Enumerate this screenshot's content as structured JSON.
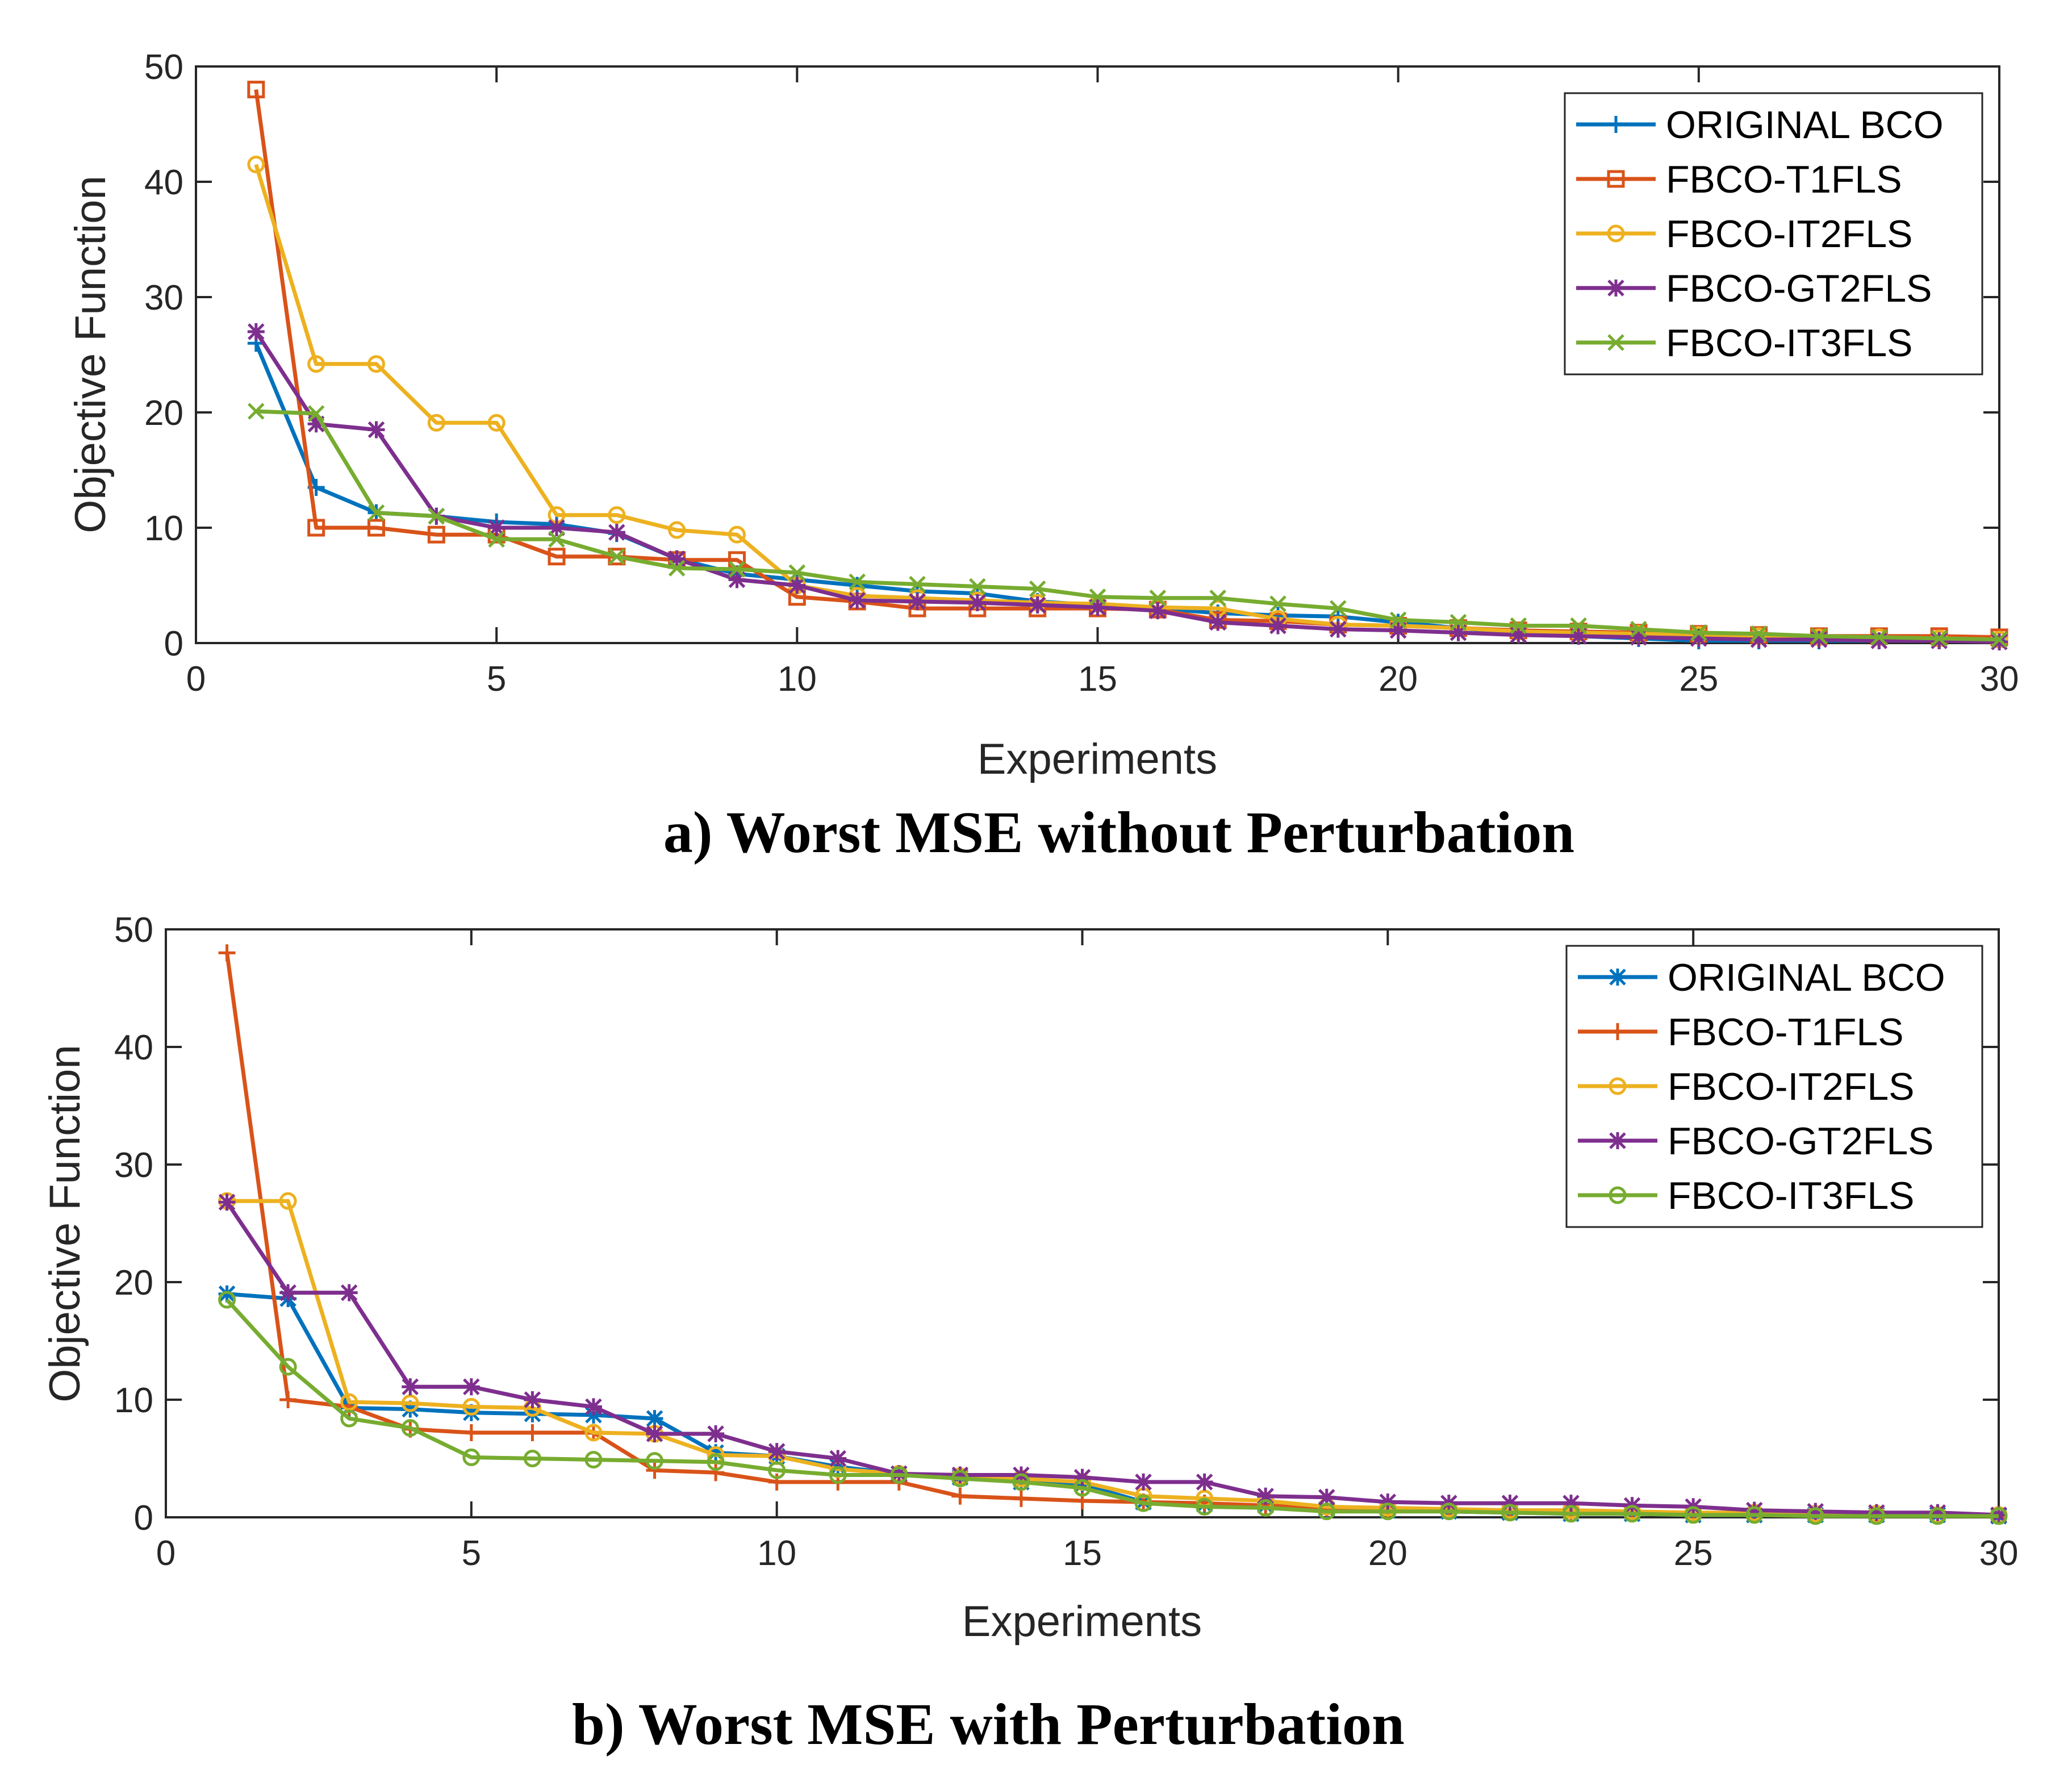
{
  "chart_data": [
    {
      "type": "line",
      "caption": "a) Worst MSE without Perturbation",
      "xlabel": "Experiments",
      "ylabel": "Objective Function",
      "xlim": [
        0,
        30
      ],
      "ylim": [
        0,
        50
      ],
      "xticks": [
        "0",
        "5",
        "10",
        "15",
        "20",
        "25",
        "30"
      ],
      "yticks": [
        "0",
        "10",
        "20",
        "30",
        "40",
        "50"
      ],
      "legend_position": "top-right",
      "x": [
        1,
        2,
        3,
        4,
        5,
        6,
        7,
        8,
        9,
        10,
        11,
        12,
        13,
        14,
        15,
        16,
        17,
        18,
        19,
        20,
        21,
        22,
        23,
        24,
        25,
        26,
        27,
        28,
        29,
        30
      ],
      "series": [
        {
          "name": "ORIGINAL BCO",
          "color": "#0072BD",
          "marker": "plus",
          "values": [
            26,
            13.5,
            11.3,
            11,
            10.5,
            10.3,
            9.5,
            7.3,
            6,
            5.5,
            5,
            4.5,
            4.3,
            3.6,
            3.3,
            3,
            2.6,
            2.4,
            2.3,
            1.8,
            1.3,
            0.9,
            0.6,
            0.4,
            0.2,
            0.2,
            0.2,
            0.2,
            0.2,
            0.2
          ]
        },
        {
          "name": "FBCO-T1FLS",
          "color": "#D95319",
          "marker": "square",
          "values": [
            48,
            10,
            10,
            9.4,
            9.4,
            7.5,
            7.5,
            7.2,
            7.2,
            4,
            3.6,
            3,
            3,
            3,
            3,
            2.9,
            2,
            1.9,
            1.6,
            1.5,
            1.3,
            1.1,
            1,
            0.9,
            0.8,
            0.7,
            0.6,
            0.6,
            0.6,
            0.5
          ]
        },
        {
          "name": "FBCO-IT2FLS",
          "color": "#EDB120",
          "marker": "circle",
          "values": [
            41.5,
            24.2,
            24.2,
            19.1,
            19.1,
            11.1,
            11.1,
            9.8,
            9.4,
            5,
            4.1,
            3.9,
            3.7,
            3.5,
            3.4,
            3.1,
            3,
            2.1,
            1.6,
            1.5,
            1.3,
            1,
            0.9,
            0.8,
            0.7,
            0.6,
            0.5,
            0.5,
            0.4,
            0.3
          ]
        },
        {
          "name": "FBCO-GT2FLS",
          "color": "#7E2F8E",
          "marker": "asterisk",
          "values": [
            27,
            19,
            18.5,
            11,
            10,
            10,
            9.6,
            7.3,
            5.5,
            5,
            3.7,
            3.6,
            3.5,
            3.3,
            3.1,
            2.8,
            1.8,
            1.5,
            1.2,
            1.1,
            0.9,
            0.7,
            0.6,
            0.5,
            0.4,
            0.3,
            0.3,
            0.2,
            0.2,
            0.1
          ]
        },
        {
          "name": "FBCO-IT3FLS",
          "color": "#77AC30",
          "marker": "x",
          "values": [
            20.1,
            19.9,
            11.3,
            11,
            9,
            9,
            7.5,
            6.5,
            6.4,
            6.1,
            5.3,
            5.1,
            4.9,
            4.7,
            4,
            3.9,
            3.9,
            3.4,
            3,
            2,
            1.8,
            1.5,
            1.5,
            1.2,
            0.9,
            0.8,
            0.6,
            0.5,
            0.4,
            0.3
          ]
        }
      ]
    },
    {
      "type": "line",
      "caption": "b) Worst MSE with Perturbation",
      "xlabel": "Experiments",
      "ylabel": "Objective Function",
      "xlim": [
        0,
        30
      ],
      "ylim": [
        0,
        50
      ],
      "xticks": [
        "0",
        "5",
        "10",
        "15",
        "20",
        "25",
        "30"
      ],
      "yticks": [
        "0",
        "10",
        "20",
        "30",
        "40",
        "50"
      ],
      "legend_position": "top-right",
      "x": [
        1,
        2,
        3,
        4,
        5,
        6,
        7,
        8,
        9,
        10,
        11,
        12,
        13,
        14,
        15,
        16,
        17,
        18,
        19,
        20,
        21,
        22,
        23,
        24,
        25,
        26,
        27,
        28,
        29,
        30
      ],
      "series": [
        {
          "name": "ORIGINAL BCO",
          "color": "#0072BD",
          "marker": "asterisk",
          "values": [
            19,
            18.6,
            9.3,
            9.2,
            8.9,
            8.8,
            8.7,
            8.4,
            5.5,
            5.2,
            4.3,
            3.7,
            3.4,
            3,
            2.8,
            1.3,
            1.1,
            1,
            0.7,
            0.6,
            0.5,
            0.4,
            0.3,
            0.3,
            0.2,
            0.2,
            0.2,
            0.2,
            0.2,
            0.1
          ]
        },
        {
          "name": "FBCO-T1FLS",
          "color": "#D95319",
          "marker": "plus",
          "values": [
            48,
            10,
            9.4,
            7.5,
            7.2,
            7.2,
            7.2,
            4,
            3.8,
            3,
            3,
            3,
            1.8,
            1.6,
            1.4,
            1.3,
            1.2,
            1,
            0.8,
            0.7,
            0.6,
            0.5,
            0.5,
            0.4,
            0.3,
            0.3,
            0.2,
            0.2,
            0.2,
            0.1
          ]
        },
        {
          "name": "FBCO-IT2FLS",
          "color": "#EDB120",
          "marker": "circle",
          "values": [
            26.9,
            26.9,
            9.8,
            9.7,
            9.4,
            9.3,
            7.2,
            7.1,
            5.3,
            5.2,
            4.1,
            3.7,
            3.5,
            3.3,
            3,
            1.8,
            1.6,
            1.4,
            0.9,
            0.8,
            0.7,
            0.6,
            0.6,
            0.5,
            0.4,
            0.4,
            0.3,
            0.3,
            0.2,
            0.2
          ]
        },
        {
          "name": "FBCO-GT2FLS",
          "color": "#7E2F8E",
          "marker": "asterisk",
          "values": [
            26.8,
            19.1,
            19.1,
            11.1,
            11.1,
            10,
            9.4,
            7.1,
            7.1,
            5.6,
            5,
            3.7,
            3.6,
            3.6,
            3.4,
            3,
            3,
            1.8,
            1.7,
            1.3,
            1.2,
            1.2,
            1.2,
            1,
            0.9,
            0.6,
            0.5,
            0.4,
            0.4,
            0.2
          ]
        },
        {
          "name": "FBCO-IT3FLS",
          "color": "#77AC30",
          "marker": "circle",
          "values": [
            18.5,
            12.8,
            8.4,
            7.6,
            5.1,
            5,
            4.9,
            4.8,
            4.7,
            4,
            3.6,
            3.6,
            3.3,
            3,
            2.5,
            1.2,
            0.9,
            0.8,
            0.5,
            0.5,
            0.5,
            0.4,
            0.3,
            0.3,
            0.2,
            0.2,
            0.1,
            0.1,
            0.1,
            0.1
          ]
        }
      ]
    }
  ]
}
